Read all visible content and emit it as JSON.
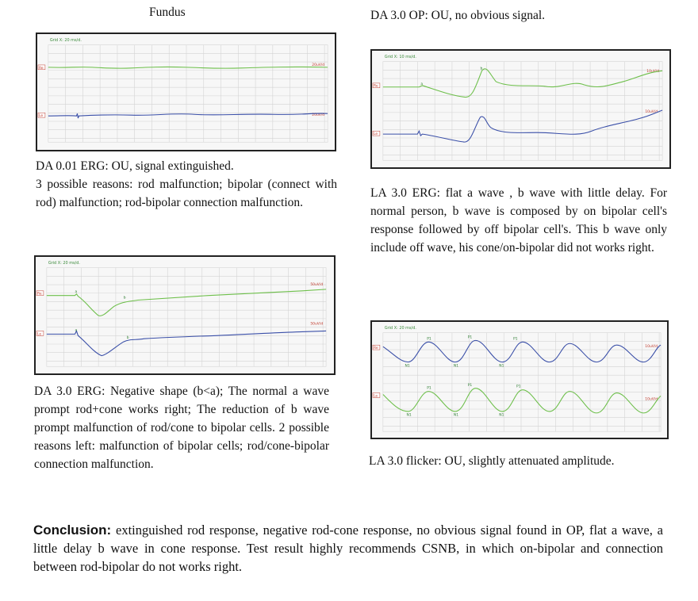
{
  "fundus_heading": "Fundus",
  "da001": {
    "grid_label": "Grid X: 20 ms/d.",
    "ch1": "Re",
    "ch2": "Le",
    "scale1": "20uV/d",
    "scale2": "20uV/d",
    "caption": "DA 0.01 ERG: OU, signal extinguished.",
    "body": "3 possible reasons: rod malfunction; bipolar (connect with rod) malfunction; rod-bipolar connection malfunction."
  },
  "da30erg": {
    "grid_label": "Grid X: 20 ms/d.",
    "ch1": "Re",
    "ch2": "Le",
    "scale1": "50uV/d",
    "scale2": "50uV/d",
    "mark_a": "a",
    "mark_b": "b",
    "caption": "DA 3.0 ERG: Negative shape (b<a); The normal a wave prompt rod+cone works right; The reduction of b wave prompt malfunction of rod/cone to bipolar cells. 2 possible reasons left: malfunction of bipolar cells; rod/cone-bipolar connection malfunction."
  },
  "da30op": {
    "title": "DA 3.0 OP: OU, no obvious signal."
  },
  "la30erg": {
    "grid_label": "Grid X: 10 ms/d.",
    "ch1": "Re",
    "ch2": "Le",
    "scale1": "10uV/d",
    "scale2": "10uV/d",
    "mark_a": "a",
    "mark_b": "b",
    "caption": "LA 3.0 ERG: flat a wave , b wave with little delay. For normal person, b wave is composed by on bipolar cell's response followed by off bipolar cell's. This b wave only include off wave, his cone/on-bipolar did not works right."
  },
  "flicker": {
    "grid_label": "Grid X: 20 ms/d.",
    "ch1": "Re",
    "ch2": "Le",
    "scale1": "10uV/d",
    "scale2": "10uV/d",
    "mark_p": "P1",
    "mark_n": "N1",
    "caption": "LA 3.0 flicker: OU, slightly attenuated amplitude."
  },
  "conclusion": {
    "lead": "Conclusion:",
    "text": " extinguished rod response, negative rod-cone response, no obvious signal found in OP, flat a wave, a little delay b wave in cone response. Test result highly recommends CSNB, in which on-bipolar and connection between rod-bipolar do not works right."
  },
  "colors": {
    "green_trace": "#6dbf4a",
    "blue_trace": "#3a4fa8",
    "grid": "#cfcfcf",
    "label_red": "#c0392b"
  }
}
